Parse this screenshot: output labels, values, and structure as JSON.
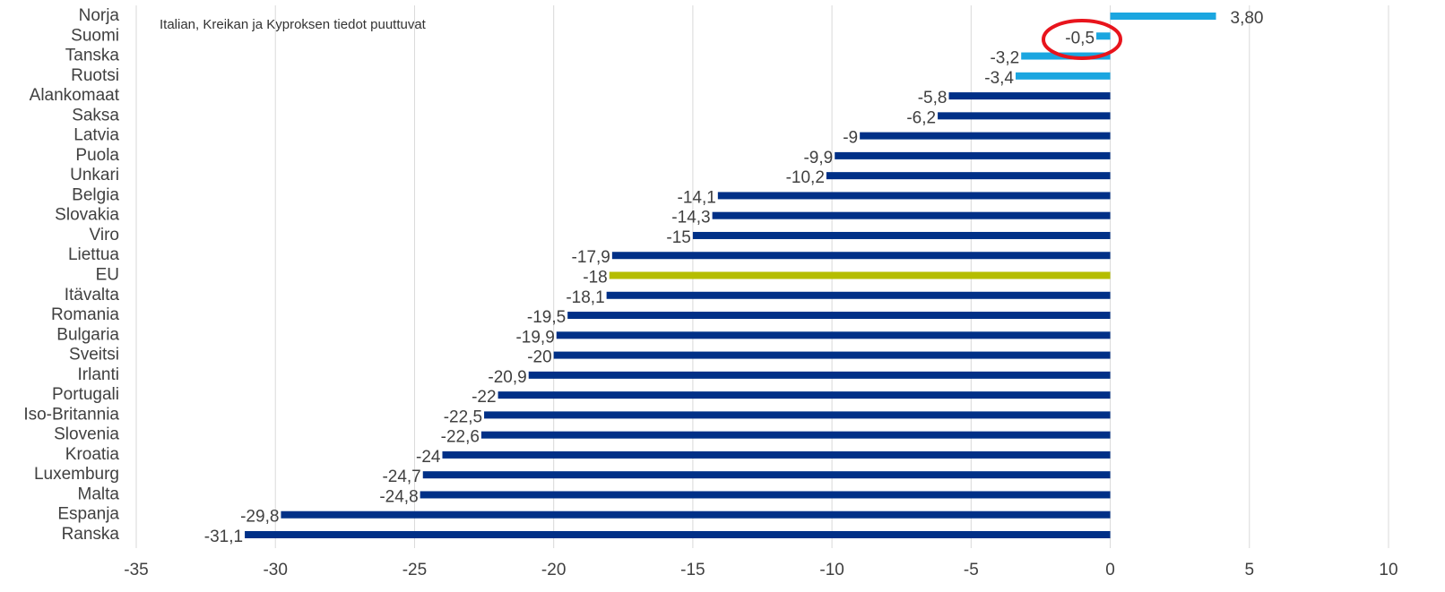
{
  "chart_data": {
    "type": "bar",
    "orientation": "horizontal",
    "annotation": "Italian, Kreikan ja Kyproksen tiedot puuttuvat",
    "categories": [
      "Norja",
      "Suomi",
      "Tanska",
      "Ruotsi",
      "Alankomaat",
      "Saksa",
      "Latvia",
      "Puola",
      "Unkari",
      "Belgia",
      "Slovakia",
      "Viro",
      "Liettua",
      "EU",
      "Itävalta",
      "Romania",
      "Bulgaria",
      "Sveitsi",
      "Irlanti",
      "Portugali",
      "Iso-Britannia",
      "Slovenia",
      "Kroatia",
      "Luxemburg",
      "Malta",
      "Espanja",
      "Ranska"
    ],
    "values": [
      3.8,
      -0.5,
      -3.2,
      -3.4,
      -5.8,
      -6.2,
      -9,
      -9.9,
      -10.2,
      -14.1,
      -14.3,
      -15,
      -17.9,
      -18,
      -18.1,
      -19.5,
      -19.9,
      -20,
      -20.9,
      -22,
      -22.5,
      -22.6,
      -24,
      -24.7,
      -24.8,
      -29.8,
      -31.1
    ],
    "value_labels": [
      "3,80",
      "-0,5",
      "-3,2",
      "-3,4",
      "-5,8",
      "-6,2",
      "-9",
      "-9,9",
      "-10,2",
      "-14,1",
      "-14,3",
      "-15",
      "-17,9",
      "-18",
      "-18,1",
      "-19,5",
      "-19,9",
      "-20",
      "-20,9",
      "-22",
      "-22,5",
      "-22,6",
      "-24",
      "-24,7",
      "-24,8",
      "-29,8",
      "-31,1"
    ],
    "colors": [
      "#1ba6e0",
      "#1ba6e0",
      "#1ba6e0",
      "#1ba6e0",
      "#003087",
      "#003087",
      "#003087",
      "#003087",
      "#003087",
      "#003087",
      "#003087",
      "#003087",
      "#003087",
      "#b5bd00",
      "#003087",
      "#003087",
      "#003087",
      "#003087",
      "#003087",
      "#003087",
      "#003087",
      "#003087",
      "#003087",
      "#003087",
      "#003087",
      "#003087",
      "#003087"
    ],
    "xlim": [
      -35,
      10
    ],
    "xticks": [
      -35,
      -30,
      -25,
      -20,
      -15,
      -10,
      -5,
      0,
      5,
      10
    ],
    "grid": true
  }
}
